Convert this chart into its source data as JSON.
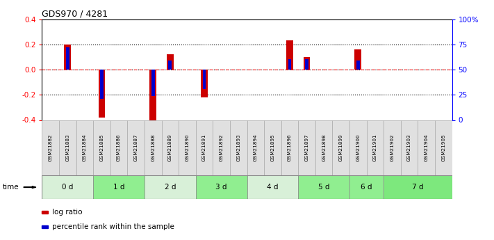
{
  "title": "GDS970 / 4281",
  "samples": [
    "GSM21882",
    "GSM21883",
    "GSM21884",
    "GSM21885",
    "GSM21886",
    "GSM21887",
    "GSM21888",
    "GSM21889",
    "GSM21890",
    "GSM21891",
    "GSM21892",
    "GSM21893",
    "GSM21894",
    "GSM21895",
    "GSM21896",
    "GSM21897",
    "GSM21898",
    "GSM21899",
    "GSM21900",
    "GSM21901",
    "GSM21902",
    "GSM21903",
    "GSM21904",
    "GSM21905"
  ],
  "log_ratio": [
    0.0,
    0.2,
    0.0,
    -0.38,
    0.0,
    0.0,
    -0.4,
    0.12,
    0.0,
    -0.22,
    0.0,
    0.0,
    0.0,
    0.0,
    0.23,
    0.1,
    0.0,
    0.0,
    0.16,
    0.0,
    0.0,
    0.0,
    0.0,
    0.0
  ],
  "pct_rank": [
    0.0,
    0.175,
    0.0,
    -0.23,
    0.0,
    0.0,
    -0.21,
    0.07,
    0.0,
    -0.155,
    0.0,
    0.0,
    0.0,
    0.0,
    0.085,
    0.085,
    0.0,
    0.0,
    0.07,
    0.0,
    0.0,
    0.0,
    0.0,
    0.0
  ],
  "time_groups": [
    {
      "label": "0 d",
      "start": 0,
      "end": 3,
      "color": "#d8f0d8"
    },
    {
      "label": "1 d",
      "start": 3,
      "end": 6,
      "color": "#90ee90"
    },
    {
      "label": "2 d",
      "start": 6,
      "end": 9,
      "color": "#d8f0d8"
    },
    {
      "label": "3 d",
      "start": 9,
      "end": 12,
      "color": "#90ee90"
    },
    {
      "label": "4 d",
      "start": 12,
      "end": 15,
      "color": "#d8f0d8"
    },
    {
      "label": "5 d",
      "start": 15,
      "end": 18,
      "color": "#90ee90"
    },
    {
      "label": "6 d",
      "start": 18,
      "end": 20,
      "color": "#90ee90"
    },
    {
      "label": "7 d",
      "start": 20,
      "end": 24,
      "color": "#7de87d"
    }
  ],
  "ylim": [
    -0.4,
    0.4
  ],
  "yticks_left": [
    -0.4,
    -0.2,
    0.0,
    0.2,
    0.4
  ],
  "yticks_right": [
    0,
    25,
    50,
    75,
    100
  ],
  "ytick_labels_right": [
    "0",
    "25",
    "50",
    "75",
    "100%"
  ],
  "dotted_lines": [
    -0.2,
    0.0,
    0.2
  ],
  "bar_color_red": "#cc0000",
  "bar_color_blue": "#0000cc",
  "bar_width": 0.4,
  "blue_bar_width": 0.2,
  "cell_color": "#e0e0e0",
  "cell_edge_color": "#aaaaaa"
}
